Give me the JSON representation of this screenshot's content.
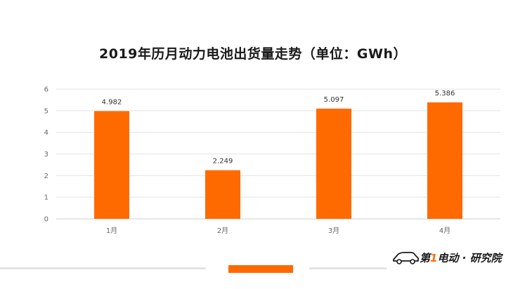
{
  "chart_data": {
    "type": "bar",
    "title": "2019年历月动力电池出货量走势（单位：GWh）",
    "categories": [
      "1月",
      "2月",
      "3月",
      "4月"
    ],
    "values": [
      4.982,
      2.249,
      5.097,
      5.386
    ],
    "value_labels": [
      "4.982",
      "2.249",
      "5.097",
      "5.386"
    ],
    "ylim": [
      0,
      6
    ],
    "yticks": [
      0,
      1,
      2,
      3,
      4,
      5,
      6
    ],
    "grid": true,
    "xlabel": "",
    "ylabel": "",
    "bar_color": "#ff6a00"
  },
  "footer": {
    "accent_color": "#ff6a00",
    "watermark": {
      "prefix": "第",
      "one": "1",
      "suffix": "电动 · 研究院"
    }
  }
}
